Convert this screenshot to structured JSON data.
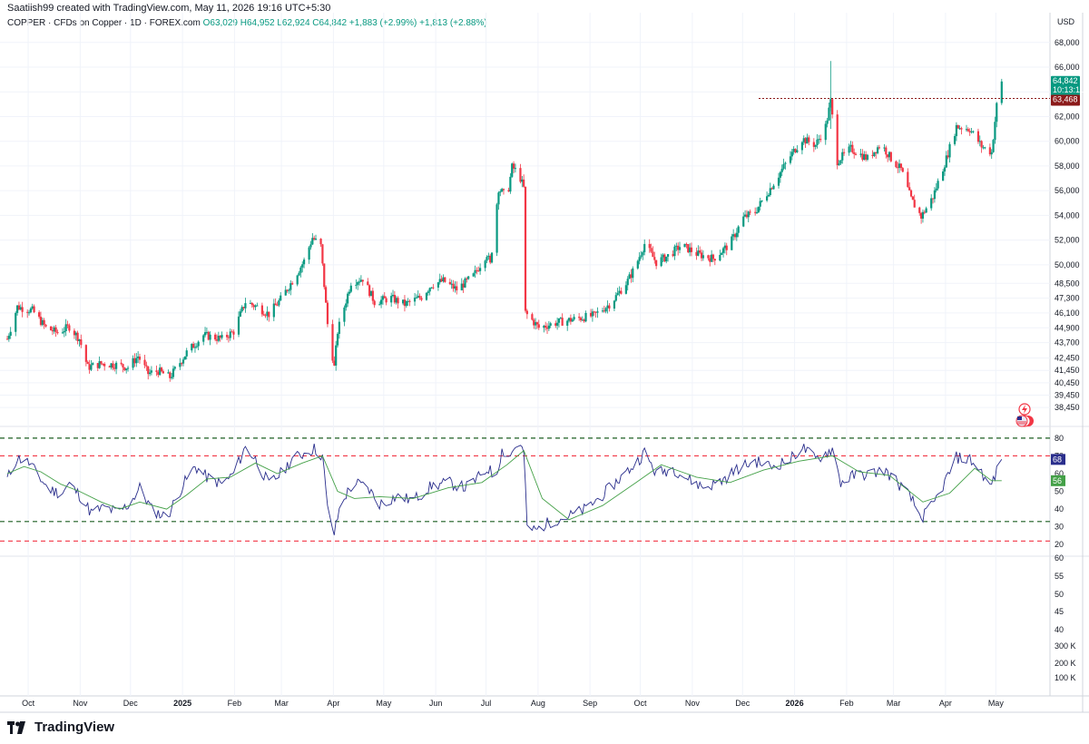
{
  "header": {
    "created_by": "Saatiish99 created with TradingView.com, May 11, 2026 19:16 UTC+5:30"
  },
  "legend": {
    "symbol": "COPPER · CFDs on Copper · 1D · FOREX.com",
    "open": "O63,029",
    "high": "H64,952",
    "low": "L62,924",
    "close": "C64,842",
    "change": "+1,883 (+2.99%)",
    "change2": "+1,813 (+2.88%)"
  },
  "currency": "USD",
  "price_labels": {
    "last": "64,842",
    "countdown": "10:13:11",
    "level": "63,468",
    "rsi": "68",
    "rsi_ma": "56"
  },
  "brand": "TradingView",
  "colors": {
    "up": "#089981",
    "down": "#f23645",
    "rsi": "#2a2e8c",
    "rsi_ma": "#43a047",
    "level": "#8b1a1a",
    "green_dash": "#1b5e20",
    "red_dash": "#f23645"
  },
  "icons": [
    "bolt-icon",
    "us-flag-icon",
    "tradingview-logo-icon"
  ],
  "chart_data": [
    {
      "type": "candlestick",
      "title": "",
      "y_axis_ticks": [
        "68,000",
        "66,000",
        "64,000",
        "62,000",
        "60,000",
        "58,000",
        "56,000",
        "54,000",
        "52,000",
        "50,000",
        "48,500",
        "47,300",
        "46,100",
        "44,900",
        "43,700",
        "42,450",
        "41,450",
        "40,450",
        "39,450",
        "38,450"
      ],
      "y_range": [
        37500,
        68500
      ],
      "x_axis_ticks": [
        "Oct",
        "Nov",
        "Dec",
        "2025",
        "Feb",
        "Mar",
        "Apr",
        "May",
        "Jun",
        "Jul",
        "Aug",
        "Sep",
        "Oct",
        "Nov",
        "Dec",
        "2026",
        "Feb",
        "Mar",
        "Apr",
        "May"
      ],
      "x_range": [
        "2024-09-25",
        "2026-06-05"
      ],
      "horizontal_level": 63468,
      "series_close": [
        [
          "2024-09-25",
          44000
        ],
        [
          "2024-10-01",
          46600
        ],
        [
          "2024-10-10",
          46300
        ],
        [
          "2024-10-18",
          44900
        ],
        [
          "2024-10-25",
          44500
        ],
        [
          "2024-11-01",
          45000
        ],
        [
          "2024-11-07",
          44000
        ],
        [
          "2024-11-12",
          41700
        ],
        [
          "2024-11-20",
          42000
        ],
        [
          "2024-11-29",
          41900
        ],
        [
          "2024-12-06",
          41700
        ],
        [
          "2024-12-12",
          42600
        ],
        [
          "2024-12-18",
          41200
        ],
        [
          "2024-12-24",
          41400
        ],
        [
          "2024-12-31",
          40900
        ],
        [
          "2025-01-10",
          42900
        ],
        [
          "2025-01-20",
          44300
        ],
        [
          "2025-01-31",
          44000
        ],
        [
          "2025-02-07",
          44600
        ],
        [
          "2025-02-14",
          47000
        ],
        [
          "2025-02-21",
          46600
        ],
        [
          "2025-02-28",
          46000
        ],
        [
          "2025-03-07",
          47200
        ],
        [
          "2025-03-14",
          48700
        ],
        [
          "2025-03-21",
          50300
        ],
        [
          "2025-03-26",
          52200
        ],
        [
          "2025-03-31",
          51500
        ],
        [
          "2025-04-04",
          45200
        ],
        [
          "2025-04-08",
          41700
        ],
        [
          "2025-04-10",
          44600
        ],
        [
          "2025-04-18",
          48600
        ],
        [
          "2025-04-25",
          48900
        ],
        [
          "2025-05-02",
          47000
        ],
        [
          "2025-05-12",
          47300
        ],
        [
          "2025-05-20",
          46800
        ],
        [
          "2025-05-30",
          47400
        ],
        [
          "2025-06-05",
          48400
        ],
        [
          "2025-06-12",
          48700
        ],
        [
          "2025-06-20",
          48000
        ],
        [
          "2025-06-30",
          49100
        ],
        [
          "2025-07-08",
          50900
        ],
        [
          "2025-07-10",
          50000
        ],
        [
          "2025-07-15",
          56200
        ],
        [
          "2025-07-20",
          55400
        ],
        [
          "2025-07-23",
          57900
        ],
        [
          "2025-07-27",
          57400
        ],
        [
          "2025-07-30",
          56200
        ],
        [
          "2025-07-31",
          46100
        ],
        [
          "2025-08-08",
          44900
        ],
        [
          "2025-08-18",
          45300
        ],
        [
          "2025-08-29",
          45600
        ],
        [
          "2025-09-10",
          45900
        ],
        [
          "2025-09-20",
          46900
        ],
        [
          "2025-09-30",
          48700
        ],
        [
          "2025-10-05",
          50000
        ],
        [
          "2025-10-10",
          51700
        ],
        [
          "2025-10-17",
          50200
        ],
        [
          "2025-10-25",
          50800
        ],
        [
          "2025-11-01",
          51600
        ],
        [
          "2025-11-10",
          50900
        ],
        [
          "2025-11-20",
          50500
        ],
        [
          "2025-11-30",
          51700
        ],
        [
          "2025-12-08",
          53800
        ],
        [
          "2025-12-15",
          54300
        ],
        [
          "2025-12-25",
          56400
        ],
        [
          "2026-01-05",
          58800
        ],
        [
          "2026-01-12",
          60200
        ],
        [
          "2026-01-20",
          59700
        ],
        [
          "2026-01-26",
          61200
        ],
        [
          "2026-01-29",
          63200
        ],
        [
          "2026-02-02",
          58400
        ],
        [
          "2026-02-10",
          59400
        ],
        [
          "2026-02-20",
          58600
        ],
        [
          "2026-02-28",
          59800
        ],
        [
          "2026-03-06",
          58600
        ],
        [
          "2026-03-12",
          57700
        ],
        [
          "2026-03-18",
          55300
        ],
        [
          "2026-03-24",
          53900
        ],
        [
          "2026-03-31",
          55500
        ],
        [
          "2026-04-08",
          58600
        ],
        [
          "2026-04-14",
          61200
        ],
        [
          "2026-04-22",
          61000
        ],
        [
          "2026-04-29",
          59600
        ],
        [
          "2026-05-05",
          59100
        ],
        [
          "2026-05-08",
          62900
        ],
        [
          "2026-05-11",
          64842
        ]
      ],
      "annotated_high": [
        "2026-01-29",
        66500
      ]
    },
    {
      "type": "line",
      "title": "RSI",
      "y_axis_ticks": [
        "80",
        "70",
        "60",
        "50",
        "40",
        "30",
        "20"
      ],
      "y_range": [
        15,
        83
      ],
      "reference_lines": {
        "green": [
          80,
          33
        ],
        "red": [
          70,
          22
        ]
      },
      "series": [
        {
          "name": "",
          "points": [
            [
              "2024-09-25",
              57
            ],
            [
              "2024-10-01",
              69
            ],
            [
              "2024-10-08",
              66
            ],
            [
              "2024-10-14",
              58
            ],
            [
              "2024-10-20",
              51
            ],
            [
              "2024-10-27",
              49
            ],
            [
              "2024-11-01",
              54
            ],
            [
              "2024-11-07",
              48
            ],
            [
              "2024-11-14",
              38
            ],
            [
              "2024-11-22",
              41
            ],
            [
              "2024-11-30",
              38
            ],
            [
              "2024-12-07",
              43
            ],
            [
              "2024-12-13",
              52
            ],
            [
              "2024-12-20",
              40
            ],
            [
              "2024-12-29",
              35
            ],
            [
              "2025-01-08",
              54
            ],
            [
              "2025-01-15",
              64
            ],
            [
              "2025-01-22",
              58
            ],
            [
              "2025-01-31",
              54
            ],
            [
              "2025-02-07",
              60
            ],
            [
              "2025-02-14",
              75
            ],
            [
              "2025-02-20",
              68
            ],
            [
              "2025-02-28",
              54
            ],
            [
              "2025-03-07",
              60
            ],
            [
              "2025-03-14",
              68
            ],
            [
              "2025-03-22",
              72
            ],
            [
              "2025-03-27",
              74
            ],
            [
              "2025-04-01",
              70
            ],
            [
              "2025-04-04",
              40
            ],
            [
              "2025-04-08",
              26
            ],
            [
              "2025-04-12",
              44
            ],
            [
              "2025-04-20",
              55
            ],
            [
              "2025-04-28",
              52
            ],
            [
              "2025-05-05",
              43
            ],
            [
              "2025-05-15",
              47
            ],
            [
              "2025-05-25",
              45
            ],
            [
              "2025-06-05",
              53
            ],
            [
              "2025-06-15",
              55
            ],
            [
              "2025-06-25",
              52
            ],
            [
              "2025-07-02",
              57
            ],
            [
              "2025-07-09",
              63
            ],
            [
              "2025-07-13",
              57
            ],
            [
              "2025-07-17",
              73
            ],
            [
              "2025-07-22",
              70
            ],
            [
              "2025-07-26",
              78
            ],
            [
              "2025-07-30",
              72
            ],
            [
              "2025-08-01",
              30
            ],
            [
              "2025-08-06",
              28
            ],
            [
              "2025-08-15",
              33
            ],
            [
              "2025-08-26",
              36
            ],
            [
              "2025-09-05",
              40
            ],
            [
              "2025-09-15",
              48
            ],
            [
              "2025-09-25",
              57
            ],
            [
              "2025-10-05",
              66
            ],
            [
              "2025-10-10",
              72
            ],
            [
              "2025-10-17",
              60
            ],
            [
              "2025-10-27",
              63
            ],
            [
              "2025-11-05",
              57
            ],
            [
              "2025-11-15",
              52
            ],
            [
              "2025-11-25",
              56
            ],
            [
              "2025-12-05",
              63
            ],
            [
              "2025-12-15",
              67
            ],
            [
              "2025-12-25",
              64
            ],
            [
              "2026-01-05",
              68
            ],
            [
              "2026-01-12",
              75
            ],
            [
              "2026-01-20",
              68
            ],
            [
              "2026-01-27",
              72
            ],
            [
              "2026-01-30",
              74
            ],
            [
              "2026-02-04",
              55
            ],
            [
              "2026-02-12",
              59
            ],
            [
              "2026-02-22",
              60
            ],
            [
              "2026-03-02",
              62
            ],
            [
              "2026-03-10",
              55
            ],
            [
              "2026-03-18",
              46
            ],
            [
              "2026-03-24",
              35
            ],
            [
              "2026-03-31",
              42
            ],
            [
              "2026-04-07",
              55
            ],
            [
              "2026-04-14",
              69
            ],
            [
              "2026-04-22",
              68
            ],
            [
              "2026-04-29",
              61
            ],
            [
              "2026-05-04",
              52
            ],
            [
              "2026-05-08",
              61
            ],
            [
              "2026-05-11",
              68
            ]
          ]
        },
        {
          "name": "",
          "points": [
            [
              "2024-09-25",
              60
            ],
            [
              "2024-10-05",
              64
            ],
            [
              "2024-10-15",
              61
            ],
            [
              "2024-10-27",
              54
            ],
            [
              "2024-11-07",
              50
            ],
            [
              "2024-11-20",
              44
            ],
            [
              "2024-12-01",
              40
            ],
            [
              "2024-12-13",
              44
            ],
            [
              "2024-12-29",
              40
            ],
            [
              "2025-01-10",
              48
            ],
            [
              "2025-01-22",
              57
            ],
            [
              "2025-02-05",
              58
            ],
            [
              "2025-02-20",
              66
            ],
            [
              "2025-03-05",
              60
            ],
            [
              "2025-03-20",
              66
            ],
            [
              "2025-04-01",
              70
            ],
            [
              "2025-04-10",
              50
            ],
            [
              "2025-04-20",
              46
            ],
            [
              "2025-05-05",
              47
            ],
            [
              "2025-05-25",
              46
            ],
            [
              "2025-06-15",
              52
            ],
            [
              "2025-07-05",
              55
            ],
            [
              "2025-07-20",
              65
            ],
            [
              "2025-07-30",
              73
            ],
            [
              "2025-08-10",
              46
            ],
            [
              "2025-08-26",
              34
            ],
            [
              "2025-09-15",
              42
            ],
            [
              "2025-10-05",
              55
            ],
            [
              "2025-10-20",
              65
            ],
            [
              "2025-11-10",
              58
            ],
            [
              "2025-11-30",
              55
            ],
            [
              "2025-12-20",
              62
            ],
            [
              "2026-01-10",
              67
            ],
            [
              "2026-01-30",
              70
            ],
            [
              "2026-02-15",
              61
            ],
            [
              "2026-03-05",
              59
            ],
            [
              "2026-03-25",
              44
            ],
            [
              "2026-04-10",
              49
            ],
            [
              "2026-04-25",
              63
            ],
            [
              "2026-05-05",
              56
            ],
            [
              "2026-05-11",
              56
            ]
          ]
        }
      ]
    },
    {
      "type": "table",
      "title": "",
      "y_axis_ticks": [
        "60",
        "55",
        "50",
        "45",
        "40",
        "300 K",
        "200 K",
        "100 K"
      ]
    }
  ]
}
